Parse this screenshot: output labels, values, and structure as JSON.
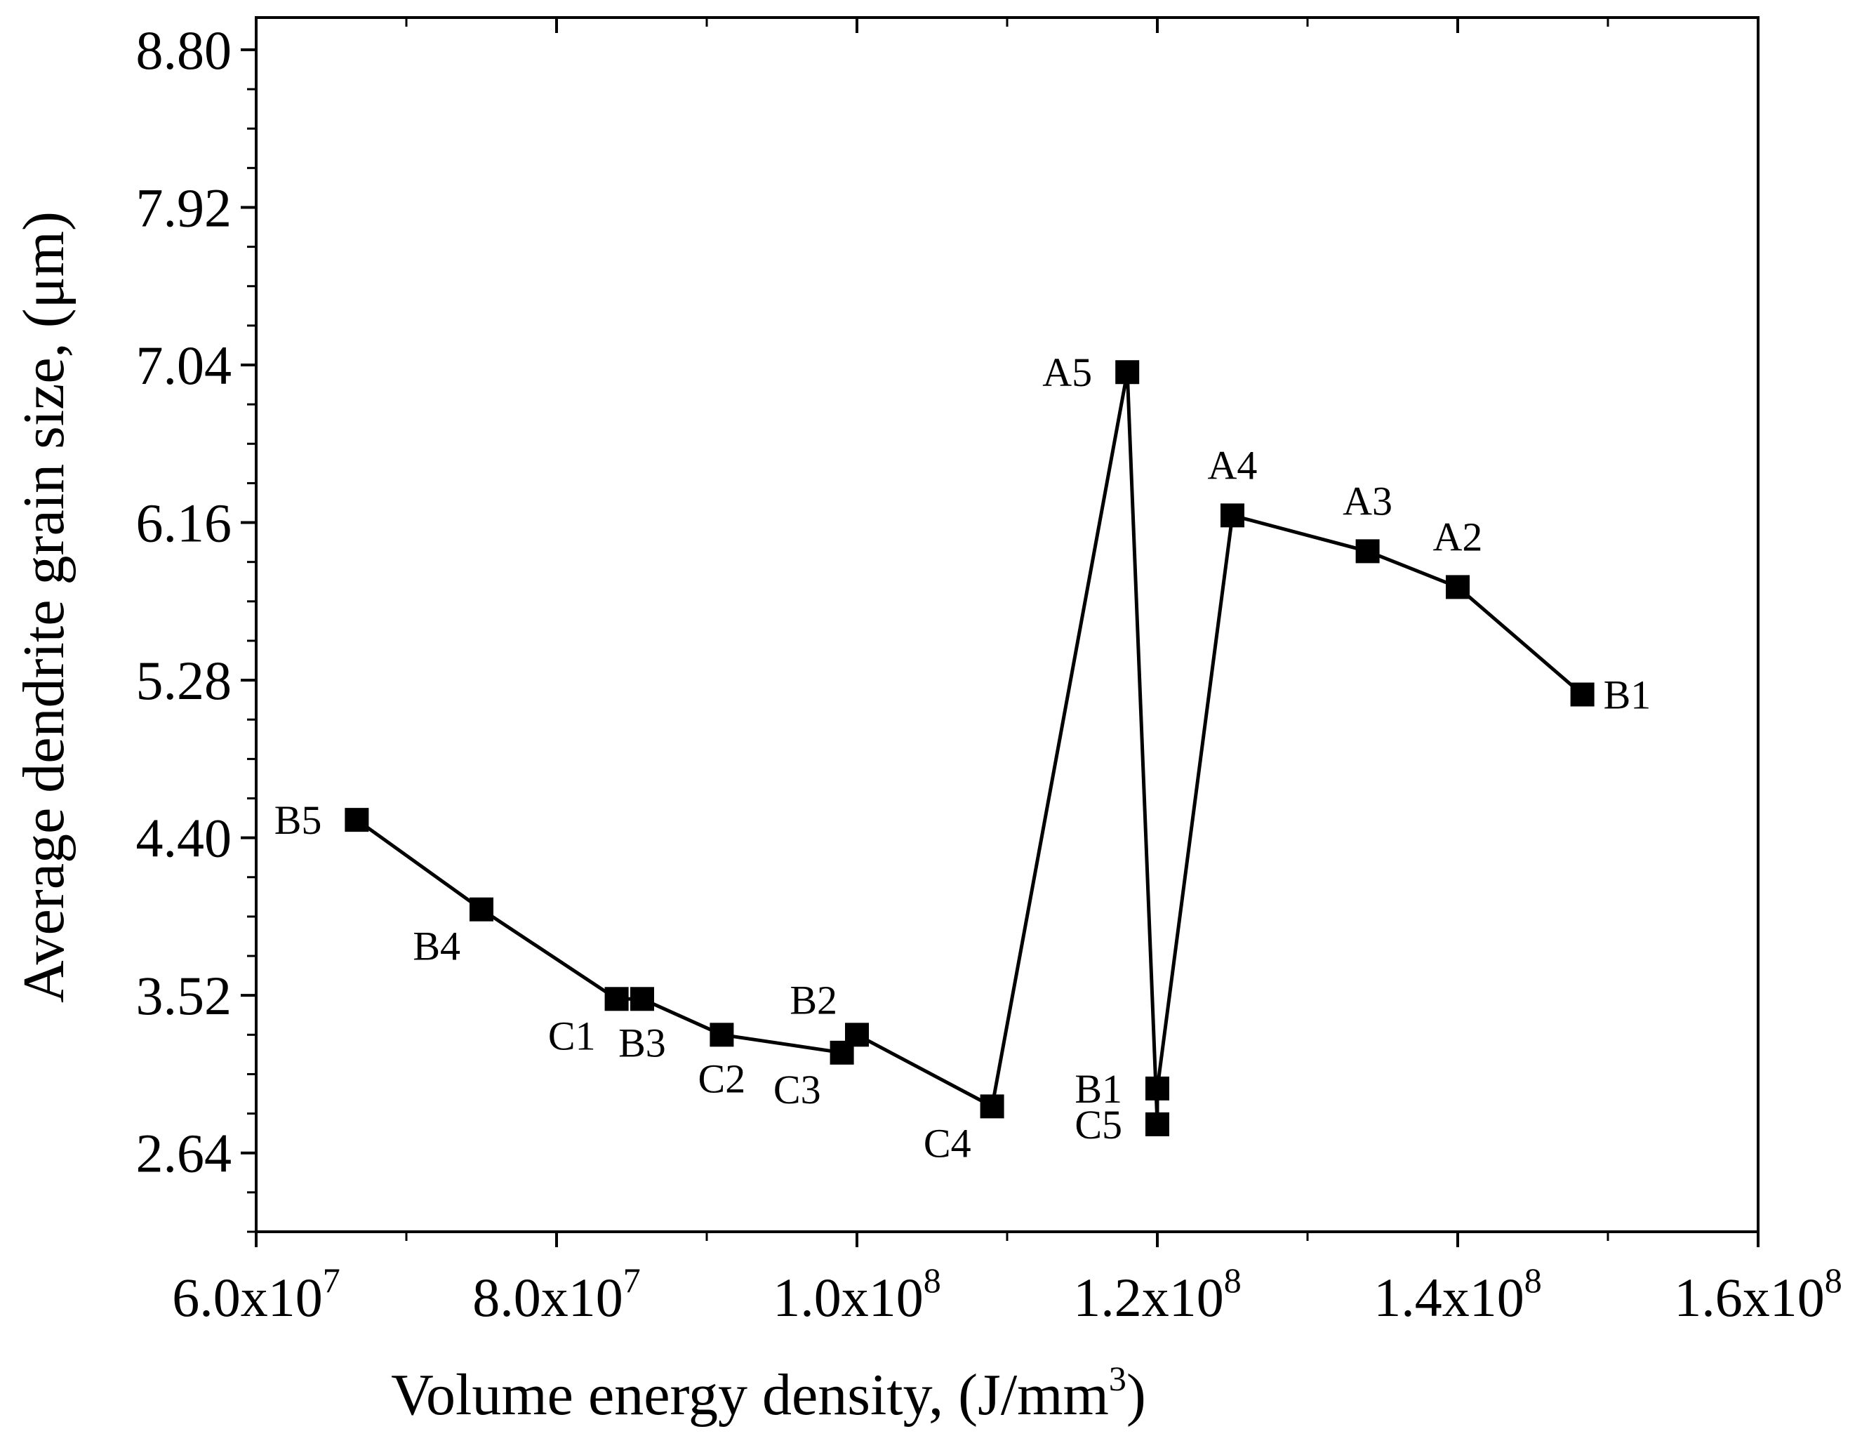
{
  "chart_data": {
    "type": "line",
    "xlabel": "Volume energy density, (J/mm",
    "xlabel_sup": "3",
    "xlabel_end": ")",
    "ylabel": "Average dendrite grain size, (μm)",
    "xlim": [
      60000000,
      160000000
    ],
    "ylim": [
      2.2,
      8.98
    ],
    "x_ticks": [
      {
        "value": 60000000,
        "mant": "6.0x10",
        "exp": "7"
      },
      {
        "value": 80000000,
        "mant": "8.0x10",
        "exp": "7"
      },
      {
        "value": 100000000,
        "mant": "1.0x10",
        "exp": "8"
      },
      {
        "value": 120000000,
        "mant": "1.2x10",
        "exp": "8"
      },
      {
        "value": 140000000,
        "mant": "1.4x10",
        "exp": "8"
      },
      {
        "value": 160000000,
        "mant": "1.6x10",
        "exp": "8"
      }
    ],
    "y_ticks": [
      "2.64",
      "3.52",
      "4.40",
      "5.28",
      "6.16",
      "7.04",
      "7.92",
      "8.80"
    ],
    "series": [
      {
        "name": "grain size",
        "points": [
          {
            "label": "B5",
            "x": 66700000,
            "y": 4.5,
            "pos": "left"
          },
          {
            "label": "B4",
            "x": 75000000,
            "y": 4.0,
            "pos": "bottom-left"
          },
          {
            "label": "C1",
            "x": 84000000,
            "y": 3.5,
            "pos": "bottom-left"
          },
          {
            "label": "B3",
            "x": 85700000,
            "y": 3.5,
            "pos": "bottom"
          },
          {
            "label": "C2",
            "x": 91000000,
            "y": 3.3,
            "pos": "bottom"
          },
          {
            "label": "C3",
            "x": 99000000,
            "y": 3.2,
            "pos": "bottom-left"
          },
          {
            "label": "B2",
            "x": 100000000,
            "y": 3.3,
            "pos": "top-left"
          },
          {
            "label": "C4",
            "x": 109000000,
            "y": 2.9,
            "pos": "bottom-left"
          },
          {
            "label": "A5",
            "x": 118000000,
            "y": 7.0,
            "pos": "left"
          },
          {
            "label": "B1",
            "x": 120000000,
            "y": 3.0,
            "pos": "left"
          },
          {
            "label": "C5",
            "x": 120000000,
            "y": 2.8,
            "pos": "left"
          },
          {
            "label": "A4",
            "x": 125000000,
            "y": 6.2,
            "pos": "top"
          },
          {
            "label": "A3",
            "x": 134000000,
            "y": 6.0,
            "pos": "top"
          },
          {
            "label": "A2",
            "x": 140000000,
            "y": 5.8,
            "pos": "top"
          },
          {
            "label": "B1",
            "x": 148300000,
            "y": 5.2,
            "pos": "right"
          }
        ],
        "line_order": [
          0,
          1,
          2,
          3,
          4,
          5,
          6,
          7,
          8,
          10,
          9,
          11,
          12,
          13,
          14
        ]
      }
    ],
    "grid": false,
    "legend": "none"
  }
}
